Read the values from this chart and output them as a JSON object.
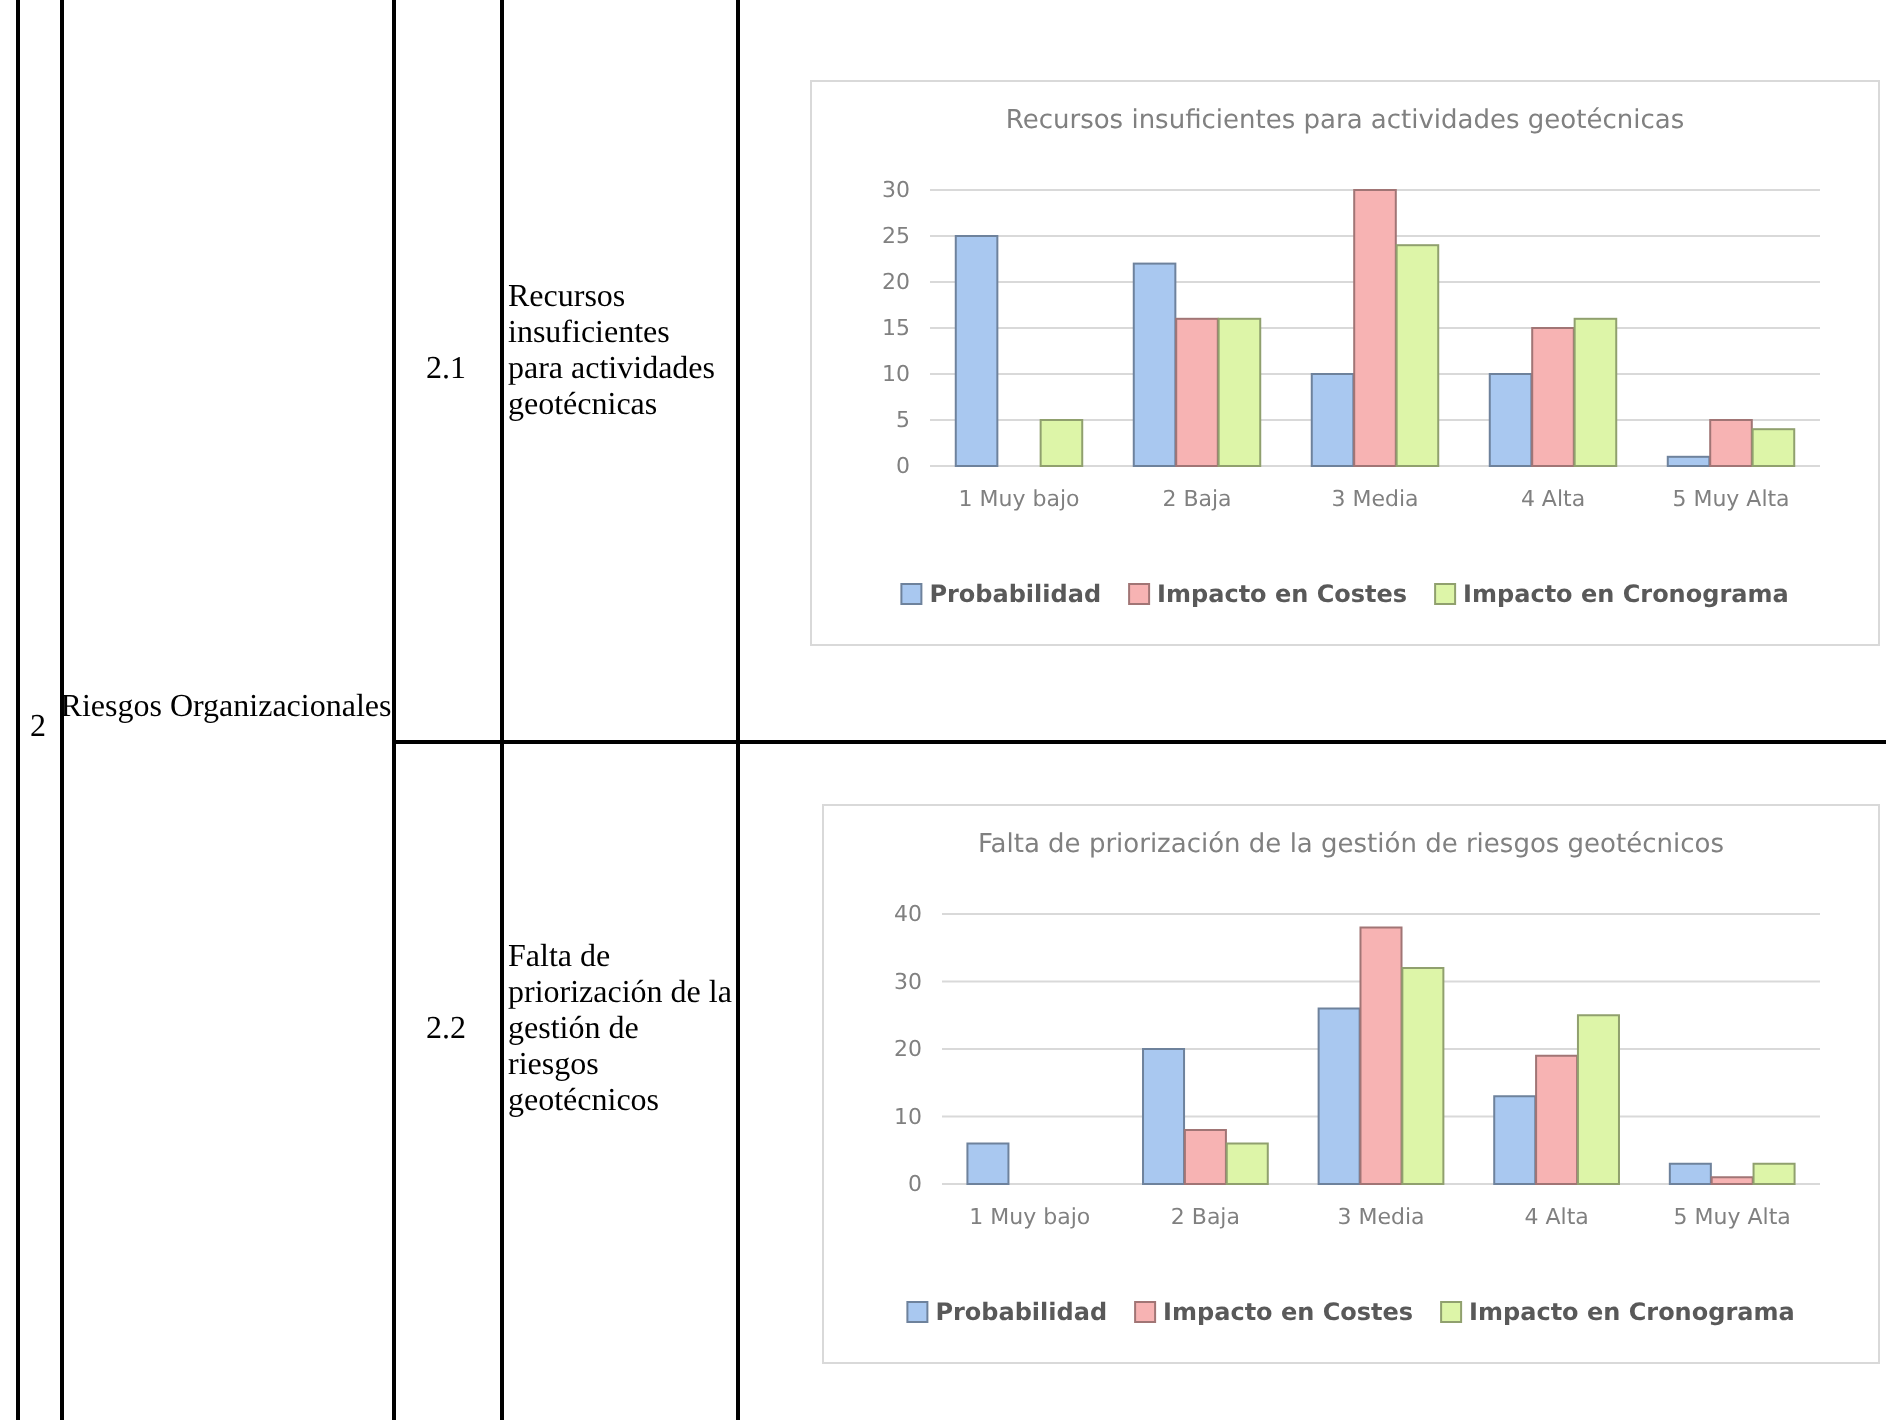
{
  "chart_data": [
    {
      "type": "other",
      "annotations": [
        "2",
        "Riesgos Organizacionales",
        "2.1",
        "Recursos insuficientes para actividades geotécnicas",
        "2.2",
        "Falta de priorización de la gestión de riesgos geotécnicos"
      ]
    },
    {
      "type": "bar",
      "title": "Recursos insuficientes para actividades geotécnicas",
      "categories": [
        "1 Muy bajo",
        "2 Baja",
        "3 Media",
        "4 Alta",
        "5 Muy Alta"
      ],
      "series": [
        {
          "name": "Probabilidad",
          "color": "#a9c8f0",
          "values": [
            25,
            22,
            10,
            10,
            1
          ]
        },
        {
          "name": "Impacto en Costes",
          "color": "#f7b3b3",
          "values": [
            0,
            16,
            30,
            15,
            5
          ]
        },
        {
          "name": "Impacto en Cronograma",
          "color": "#ddf5a8",
          "values": [
            5,
            16,
            24,
            16,
            4
          ]
        }
      ],
      "ylim": [
        0,
        30
      ],
      "yticks": [
        0,
        5,
        10,
        15,
        20,
        25,
        30
      ],
      "grid": "y",
      "legend": "bottom"
    },
    {
      "type": "bar",
      "title": "Falta de priorización de la gestión de riesgos geotécnicos",
      "categories": [
        "1 Muy bajo",
        "2 Baja",
        "3 Media",
        "4 Alta",
        "5 Muy Alta"
      ],
      "series": [
        {
          "name": "Probabilidad",
          "color": "#a9c8f0",
          "values": [
            6,
            20,
            26,
            13,
            3
          ]
        },
        {
          "name": "Impacto en Costes",
          "color": "#f7b3b3",
          "values": [
            0,
            8,
            38,
            19,
            1
          ]
        },
        {
          "name": "Impacto en Cronograma",
          "color": "#ddf5a8",
          "values": [
            0,
            6,
            32,
            25,
            3
          ]
        }
      ],
      "ylim": [
        0,
        40
      ],
      "yticks": [
        0,
        10,
        20,
        30,
        40
      ],
      "grid": "y",
      "legend": "bottom"
    }
  ]
}
